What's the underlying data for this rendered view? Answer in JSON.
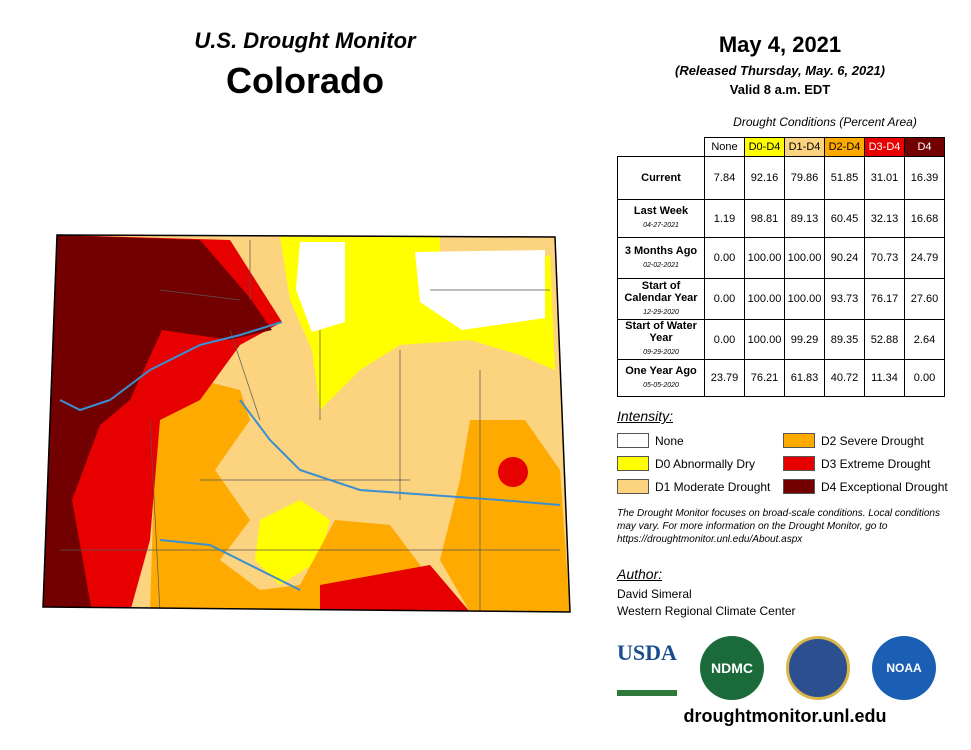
{
  "header": {
    "title": "U.S. Drought Monitor",
    "state": "Colorado"
  },
  "dates": {
    "date": "May 4, 2021",
    "released": "(Released Thursday, May. 6, 2021)",
    "valid": "Valid 8 a.m. EDT"
  },
  "table": {
    "caption": "Drought Conditions (Percent Area)",
    "columns": [
      "None",
      "D0-D4",
      "D1-D4",
      "D2-D4",
      "D3-D4",
      "D4"
    ],
    "rows": [
      {
        "label": "Current",
        "cells": [
          "7.84",
          "92.16",
          "79.86",
          "51.85",
          "31.01",
          "16.39"
        ]
      },
      {
        "label": "Last Week",
        "date": "04-27-2021",
        "cells": [
          "1.19",
          "98.81",
          "89.13",
          "60.45",
          "32.13",
          "16.68"
        ]
      },
      {
        "label": "3 Months Ago",
        "date": "02-02-2021",
        "cells": [
          "0.00",
          "100.00",
          "100.00",
          "90.24",
          "70.73",
          "24.79"
        ]
      },
      {
        "label": "Start of Calendar Year",
        "date": "12-29-2020",
        "cells": [
          "0.00",
          "100.00",
          "100.00",
          "93.73",
          "76.17",
          "27.60"
        ]
      },
      {
        "label": "Start of Water Year",
        "date": "09-29-2020",
        "cells": [
          "0.00",
          "100.00",
          "99.29",
          "89.35",
          "52.88",
          "2.64"
        ]
      },
      {
        "label": "One Year Ago",
        "date": "05-05-2020",
        "cells": [
          "23.79",
          "76.21",
          "61.83",
          "40.72",
          "11.34",
          "0.00"
        ]
      }
    ]
  },
  "legend": {
    "title": "Intensity:",
    "items": [
      {
        "label": "None",
        "color": "#ffffff"
      },
      {
        "label": "D0 Abnormally Dry",
        "color": "#ffff00"
      },
      {
        "label": "D1 Moderate Drought",
        "color": "#fcd37f"
      },
      {
        "label": "D2 Severe Drought",
        "color": "#ffaa00"
      },
      {
        "label": "D3 Extreme Drought",
        "color": "#e60000"
      },
      {
        "label": "D4 Exceptional Drought",
        "color": "#730000"
      }
    ]
  },
  "note": "The Drought Monitor focuses on broad-scale conditions. Local conditions may vary. For more information on the Drought Monitor, go to https://droughtmonitor.unl.edu/About.aspx",
  "author": {
    "title": "Author:",
    "name": "David Simeral",
    "org": "Western Regional Climate Center"
  },
  "logos": [
    "USDA",
    "NDMC",
    "NOAA"
  ],
  "url": "droughtmonitor.unl.edu"
}
